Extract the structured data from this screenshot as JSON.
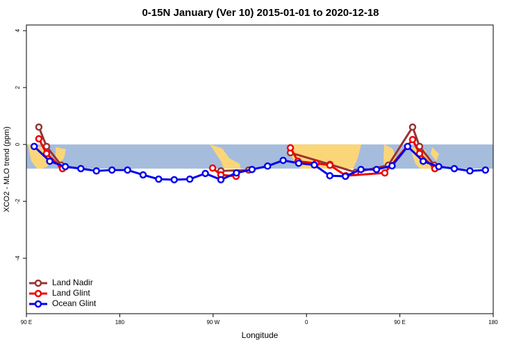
{
  "chart_data": {
    "type": "line",
    "title": "0-15N January (Ver 10)   2015-01-01 to 2020-12-18",
    "xlabel": "Longitude",
    "ylabel": "XCO2 - MLO trend (ppm)",
    "xlim": [
      90,
      540
    ],
    "ylim": [
      -5.95,
      4.2
    ],
    "xticks": [
      {
        "value": 90,
        "label": "90 E"
      },
      180,
      {
        "value": 270,
        "label": "90 W"
      },
      {
        "value": 360,
        "label": "0"
      },
      {
        "value": 450,
        "label": "90 E"
      },
      {
        "value": 540,
        "label": "180"
      }
    ],
    "yticks": [
      -4,
      -2,
      0,
      2,
      4
    ],
    "map_band": [
      -0.85,
      0
    ],
    "map_color": "#a6bcdc",
    "land_color": "#fbd679",
    "legend": "bottom-left",
    "series": [
      {
        "name": "Land Nadir",
        "color": "#993333",
        "x": [
          102,
          109.4,
          123.5,
          null,
          277.5,
          304.3,
          null,
          344.5,
          382.6,
          407.4,
          438.9,
          462.3,
          469,
          483.1
        ],
        "values": [
          0.61,
          -0.07,
          -0.73,
          null,
          -0.93,
          -0.9,
          null,
          -0.29,
          -0.7,
          -0.98,
          -0.73,
          0.61,
          -0.07,
          -0.73
        ]
      },
      {
        "name": "Land Glint",
        "color": "#ee0000",
        "x": [
          102,
          109.4,
          124.8,
          null,
          269.5,
          277.5,
          292.2,
          null,
          344.5,
          351.8,
          369.2,
          382.6,
          398,
          435.5,
          462.3,
          469,
          483.7
        ],
        "values": [
          0.2,
          -0.32,
          -0.85,
          null,
          -0.83,
          -1.07,
          -1.12,
          null,
          -0.12,
          -0.59,
          -0.66,
          -0.73,
          -1.1,
          -1.0,
          0.17,
          -0.32,
          -0.85
        ]
      },
      {
        "name": "Ocean Glint",
        "color": "#0000ee",
        "x": [
          97.5,
          112.5,
          127.5,
          142.5,
          157.5,
          172.5,
          187.5,
          202.5,
          217.5,
          232.5,
          247.5,
          262.5,
          277.5,
          292.5,
          307.5,
          322.5,
          337.5,
          352.5,
          367.5,
          382.5,
          397.5,
          412.5,
          427.5,
          442.5,
          457.5,
          472.5,
          487.5,
          502.5,
          517.5,
          532.5
        ],
        "values": [
          -0.07,
          -0.59,
          -0.78,
          -0.85,
          -0.93,
          -0.9,
          -0.9,
          -1.07,
          -1.22,
          -1.24,
          -1.22,
          -1.02,
          -1.24,
          -1.0,
          -0.88,
          -0.76,
          -0.56,
          -0.66,
          -0.72,
          -1.1,
          -1.12,
          -0.88,
          -0.88,
          -0.75,
          -0.07,
          -0.59,
          -0.78,
          -0.85,
          -0.93,
          -0.9
        ]
      }
    ]
  }
}
